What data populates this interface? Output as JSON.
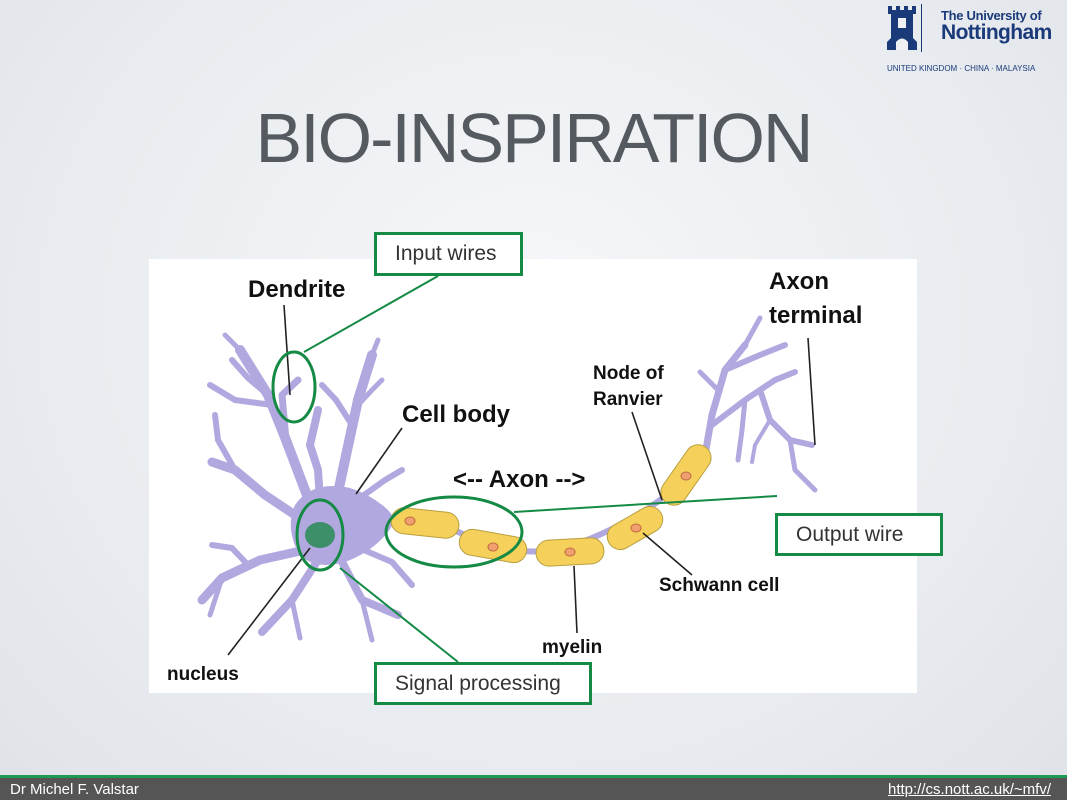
{
  "slide": {
    "title": "BIO-INSPIRATION"
  },
  "logo": {
    "line1": "The University of",
    "line2": "Nottingham",
    "line3": "UNITED KINGDOM · CHINA · MALAYSIA"
  },
  "diagram": {
    "labels": {
      "dendrite": "Dendrite",
      "axon_terminal_1": "Axon",
      "axon_terminal_2": "terminal",
      "node_1": "Node of",
      "node_2": "Ranvier",
      "cell_body": "Cell body",
      "axon": "<-- Axon -->",
      "schwann": "Schwann cell",
      "myelin": "myelin",
      "nucleus": "nucleus"
    },
    "callouts": {
      "input": "Input wires",
      "output": "Output wire",
      "signal": "Signal processing"
    },
    "colors": {
      "neuron": "#b2a8e0",
      "myelin": "#f5d05a",
      "nucleus": "#3d8f6a",
      "highlight": "#148a45"
    }
  },
  "footer": {
    "author": "Dr Michel F. Valstar",
    "url": "http://cs.nott.ac.uk/~mfv/"
  }
}
